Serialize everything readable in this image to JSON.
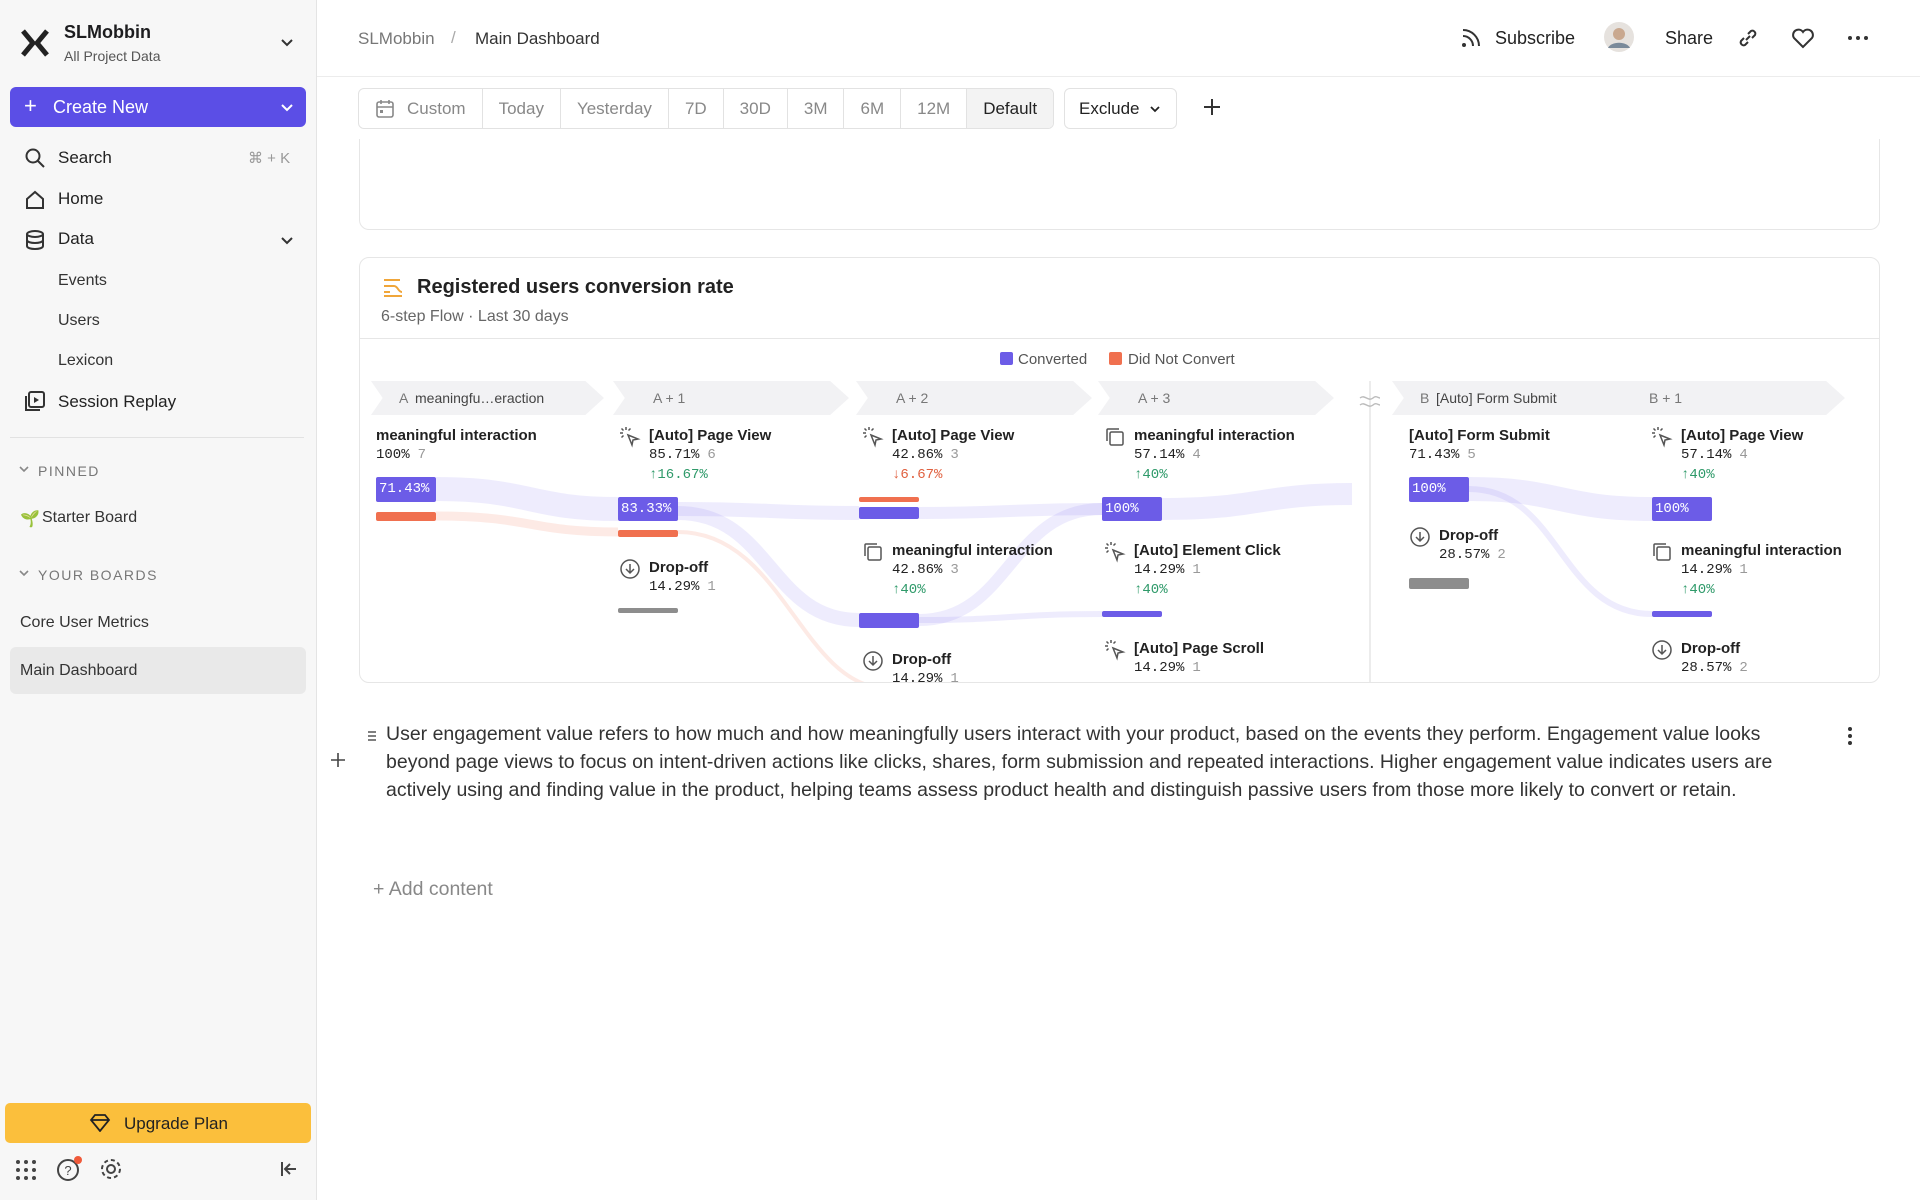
{
  "sidebar": {
    "workspace_name": "SLMobbin",
    "workspace_sub": "All Project Data",
    "create_button": "Create New",
    "search": {
      "label": "Search",
      "shortcut": "⌘ + K"
    },
    "home": "Home",
    "data": "Data",
    "data_children": [
      "Events",
      "Users",
      "Lexicon"
    ],
    "session_replay": "Session Replay",
    "pinned_heading": "PINNED",
    "pinned": [
      "Starter Board"
    ],
    "boards_heading": "YOUR BOARDS",
    "boards": [
      "Core User Metrics",
      "Main Dashboard"
    ],
    "upgrade": "Upgrade Plan"
  },
  "header": {
    "breadcrumb": [
      "SLMobbin",
      "Main Dashboard"
    ],
    "separator": "/",
    "subscribe": "Subscribe",
    "share": "Share"
  },
  "toolbar": {
    "date_ranges": [
      "Custom",
      "Today",
      "Yesterday",
      "7D",
      "30D",
      "3M",
      "6M",
      "12M",
      "Default"
    ],
    "exclude": "Exclude"
  },
  "card": {
    "title": "Registered users conversion rate",
    "subtitle": "6-step Flow · Last 30 days",
    "legend": [
      "Converted",
      "Did Not Convert"
    ],
    "steps": [
      {
        "label": "A",
        "name": "meaningfu…eraction",
        "nodes": [
          {
            "name": "meaningful interaction",
            "pct": "100%",
            "count": "7",
            "bar": "71.43%"
          }
        ]
      },
      {
        "label": "A + 1",
        "nodes": [
          {
            "name": "[Auto] Page View",
            "pct": "85.71%",
            "count": "6",
            "change": "↑16.67%",
            "bar": "83.33%"
          },
          {
            "name": "Drop-off",
            "pct": "14.29%",
            "count": "1"
          }
        ]
      },
      {
        "label": "A + 2",
        "nodes": [
          {
            "name": "[Auto] Page View",
            "pct": "42.86%",
            "count": "3",
            "change": "↓6.67%"
          },
          {
            "name": "meaningful interaction",
            "pct": "42.86%",
            "count": "3",
            "change": "↑40%"
          },
          {
            "name": "Drop-off",
            "pct": "14.29%",
            "count": "1"
          }
        ]
      },
      {
        "label": "A + 3",
        "nodes": [
          {
            "name": "meaningful interaction",
            "pct": "57.14%",
            "count": "4",
            "change": "↑40%",
            "bar": "100%"
          },
          {
            "name": "[Auto] Element Click",
            "pct": "14.29%",
            "count": "1",
            "change": "↑40%"
          },
          {
            "name": "[Auto] Page Scroll",
            "pct": "14.29%",
            "count": "1"
          }
        ]
      },
      {
        "label": "B",
        "name": "[Auto] Form Submit",
        "nodes": [
          {
            "name": "[Auto] Form Submit",
            "pct": "71.43%",
            "count": "5",
            "bar": "100%"
          },
          {
            "name": "Drop-off",
            "pct": "28.57%",
            "count": "2"
          }
        ]
      },
      {
        "label": "B + 1",
        "nodes": [
          {
            "name": "[Auto] Page View",
            "pct": "57.14%",
            "count": "4",
            "change": "↑40%",
            "bar": "100%"
          },
          {
            "name": "meaningful interaction",
            "pct": "14.29%",
            "count": "1",
            "change": "↑40%"
          },
          {
            "name": "Drop-off",
            "pct": "28.57%",
            "count": "2"
          }
        ]
      }
    ]
  },
  "text_block": "User engagement value refers to how much and how meaningfully users interact with your product, based on the events they perform. Engagement value looks beyond page views to focus on intent-driven actions like clicks, shares, form submission and repeated interactions. Higher engagement value indicates users are actively using and finding value in the product, helping teams assess product health and distinguish passive users from those more likely to convert or retain.",
  "add_content": "+ Add content"
}
